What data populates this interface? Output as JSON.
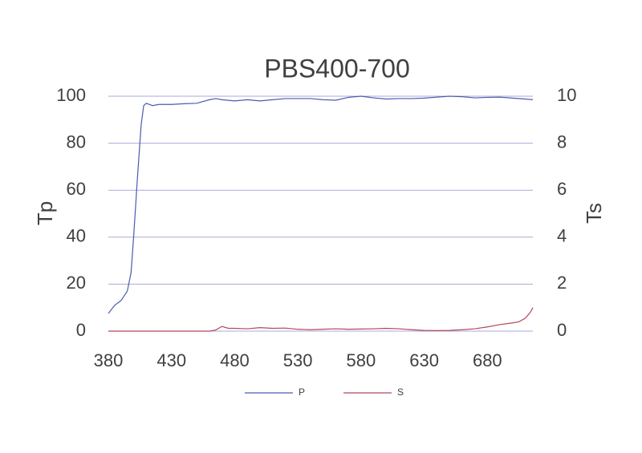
{
  "chart_data": {
    "type": "line",
    "title": "PBS400-700",
    "y_label": "Tp",
    "y2_label": "Ts",
    "xlim": [
      380,
      716
    ],
    "xticks": [
      380,
      430,
      480,
      530,
      580,
      630,
      680
    ],
    "ylim": [
      0,
      100
    ],
    "yticks": [
      0,
      20,
      40,
      60,
      80,
      100
    ],
    "y2lim": [
      0,
      10
    ],
    "y2ticks": [
      0,
      2,
      4,
      6,
      8,
      10
    ],
    "grid": true,
    "legend": "bottom",
    "series": [
      {
        "name": "P",
        "color": "#4a5cb0",
        "x": [
          380,
          385,
          390,
          395,
          398,
          400,
          403,
          406,
          408,
          410,
          415,
          420,
          430,
          440,
          450,
          460,
          465,
          470,
          480,
          490,
          500,
          510,
          520,
          530,
          540,
          550,
          560,
          570,
          580,
          590,
          600,
          610,
          620,
          630,
          640,
          650,
          660,
          670,
          680,
          690,
          700,
          710,
          716
        ],
        "values": [
          7.5,
          11,
          13,
          17,
          25,
          40,
          65,
          88,
          96,
          97,
          96,
          96.5,
          96.5,
          96.8,
          97,
          98.5,
          99,
          98.5,
          98,
          98.5,
          98,
          98.5,
          99,
          99,
          99,
          98.5,
          98.3,
          99.5,
          100,
          99.3,
          98.8,
          99,
          99,
          99.2,
          99.6,
          100,
          99.8,
          99.3,
          99.5,
          99.6,
          99.2,
          98.8,
          98.5
        ]
      },
      {
        "name": "S",
        "color": "#b5475c",
        "axis": "y2",
        "x": [
          380,
          400,
          420,
          440,
          460,
          465,
          470,
          475,
          480,
          490,
          500,
          510,
          520,
          530,
          540,
          550,
          560,
          570,
          580,
          590,
          600,
          610,
          620,
          630,
          640,
          650,
          660,
          670,
          680,
          690,
          700,
          705,
          710,
          714,
          716
        ],
        "values": [
          0,
          0,
          0,
          0,
          0,
          0.05,
          0.2,
          0.12,
          0.12,
          0.1,
          0.15,
          0.12,
          0.13,
          0.08,
          0.06,
          0.08,
          0.1,
          0.08,
          0.09,
          0.1,
          0.12,
          0.1,
          0.06,
          0.03,
          0.02,
          0.03,
          0.06,
          0.1,
          0.18,
          0.28,
          0.35,
          0.4,
          0.55,
          0.8,
          1.0
        ]
      }
    ]
  }
}
